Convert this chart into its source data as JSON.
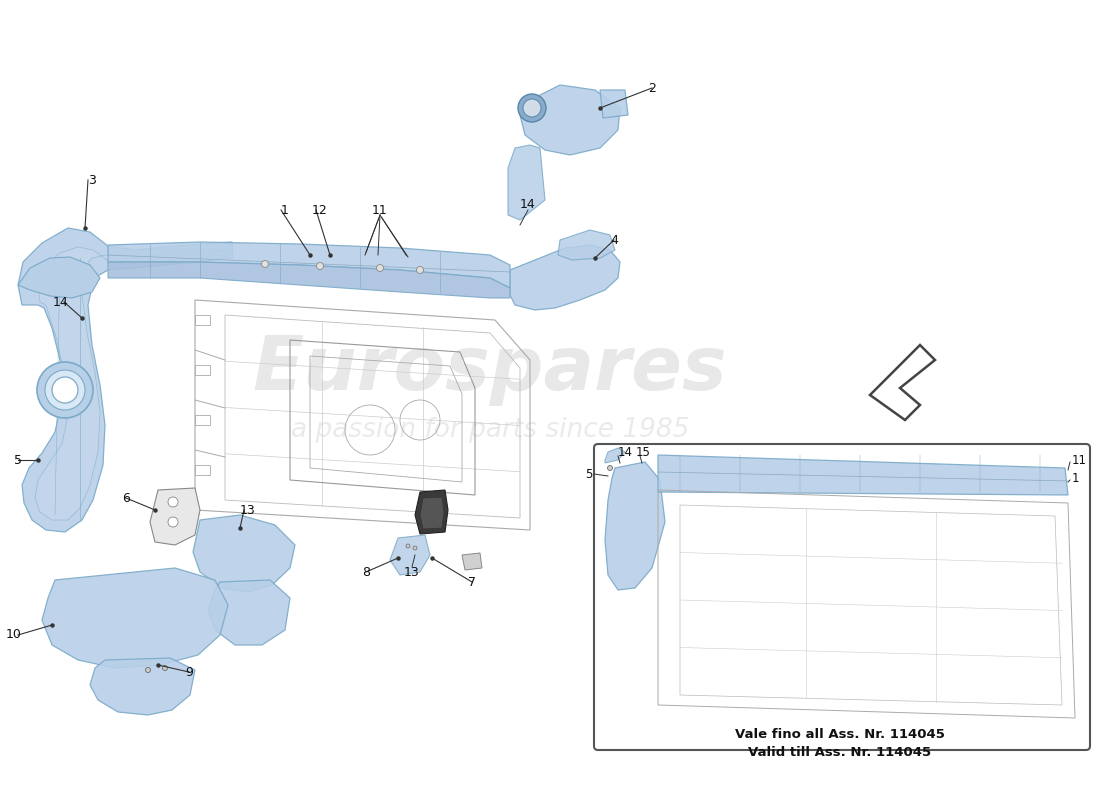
{
  "background_color": "#ffffff",
  "blue_fill": "#b8cfe8",
  "blue_edge": "#7aaac8",
  "blue_dark": "#8aabcc",
  "wire_color": "#999999",
  "wire_color2": "#bbbbbb",
  "label_color": "#111111",
  "wm_color": "#cccccc",
  "wm_text": "Eurospares",
  "wm_sub": "a passion for parts since 1985",
  "note1": "Vale fino all Ass. Nr. 114045",
  "note2": "Valid till Ass. Nr. 114045",
  "inset_border": "#555555"
}
